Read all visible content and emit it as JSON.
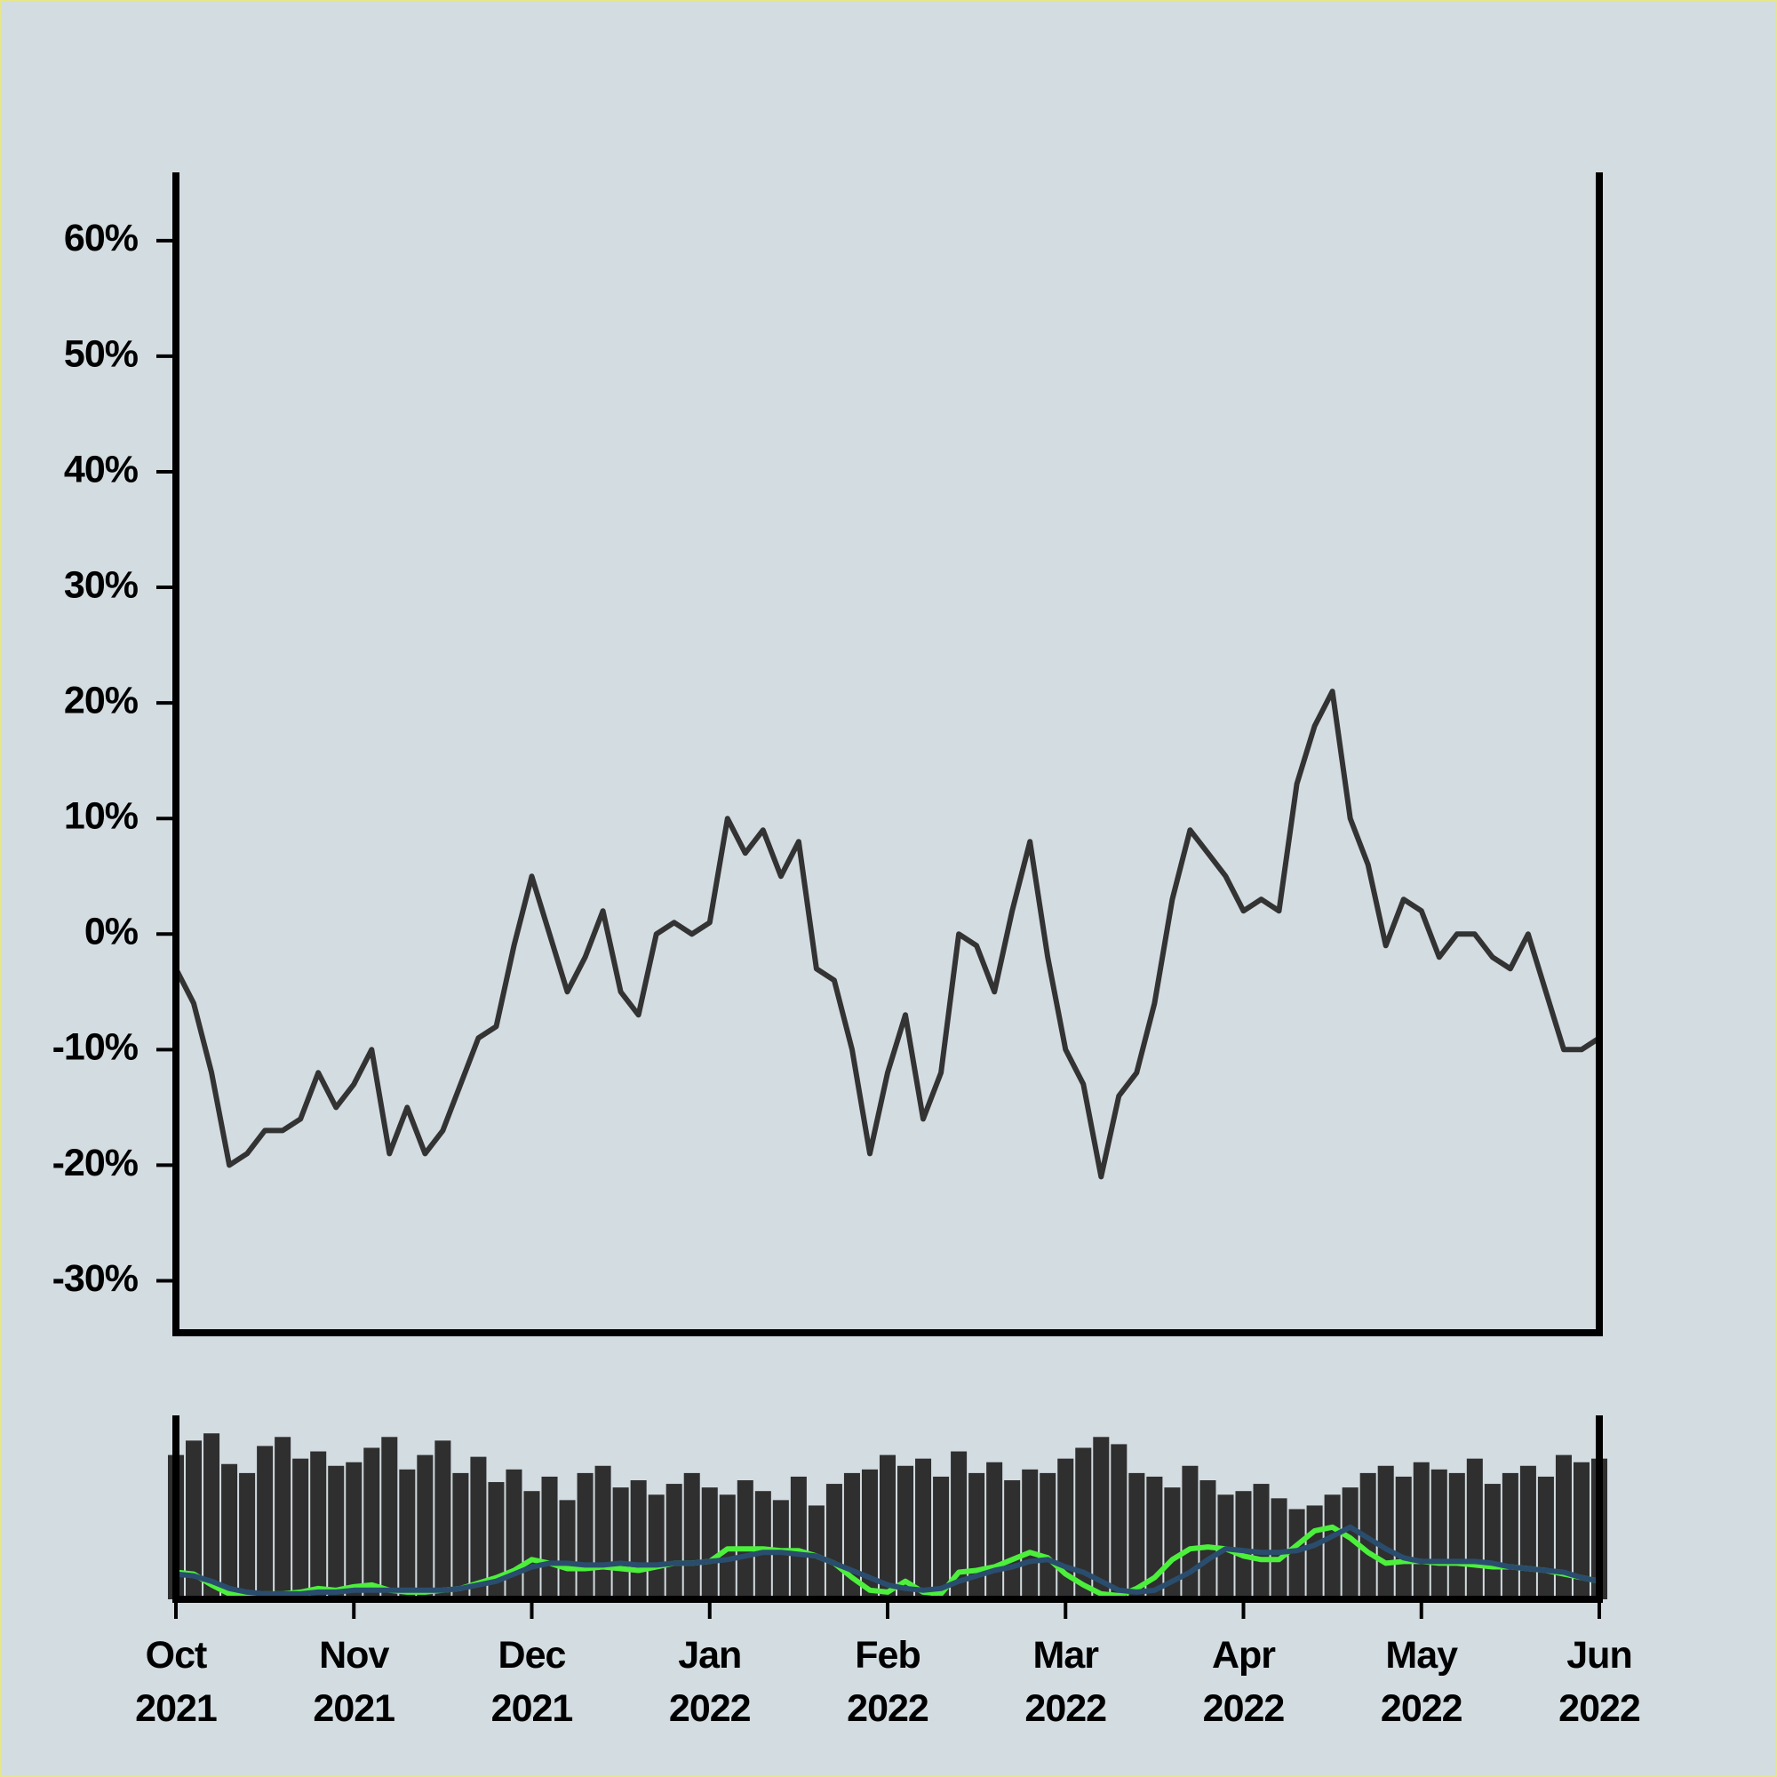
{
  "chart_data": [
    {
      "type": "line",
      "color": "#333333",
      "values": [
        -3,
        -6,
        -12,
        -20,
        -19,
        -17,
        -17,
        -16,
        -12,
        -15,
        -13,
        -10,
        -19,
        -15,
        -19,
        -17,
        -13,
        -9,
        -8,
        -1,
        5,
        0,
        -5,
        -2,
        2,
        -5,
        -7,
        0,
        1,
        0,
        1,
        10,
        7,
        9,
        5,
        8,
        -3,
        -4,
        -10,
        -19,
        -12,
        -7,
        -16,
        -12,
        0,
        -1,
        -5,
        2,
        8,
        -2,
        -10,
        -13,
        -21,
        -14,
        -12,
        -6,
        3,
        9,
        7,
        5,
        2,
        3,
        2,
        13,
        18,
        21,
        10,
        6,
        -1,
        3,
        2,
        -2,
        0,
        0,
        -2,
        -3,
        0,
        -5,
        -10,
        -10,
        -9
      ],
      "ylim": [
        -34.5,
        65.6
      ],
      "yticks": [
        {
          "value": -30,
          "label": "-30%"
        },
        {
          "value": -20,
          "label": "-20%"
        },
        {
          "value": -10,
          "label": "-10%"
        },
        {
          "value": 0,
          "label": "0%"
        },
        {
          "value": 10,
          "label": "10%"
        },
        {
          "value": 20,
          "label": "20%"
        },
        {
          "value": 30,
          "label": "30%"
        },
        {
          "value": 40,
          "label": "40%"
        },
        {
          "value": 50,
          "label": "50%"
        },
        {
          "value": 60,
          "label": "60%"
        }
      ]
    },
    {
      "type": "combo",
      "categories": [
        "Oct 2021",
        null,
        null,
        null,
        null,
        null,
        null,
        null,
        null,
        null,
        "Nov 2021",
        null,
        null,
        null,
        null,
        null,
        null,
        null,
        null,
        null,
        "Dec 2021",
        null,
        null,
        null,
        null,
        null,
        null,
        null,
        null,
        null,
        "Jan 2022",
        null,
        null,
        null,
        null,
        null,
        null,
        null,
        null,
        null,
        "Feb 2022",
        null,
        null,
        null,
        null,
        null,
        null,
        null,
        null,
        null,
        "Mar 2022",
        null,
        null,
        null,
        null,
        null,
        null,
        null,
        null,
        null,
        "Apr 2022",
        null,
        null,
        null,
        null,
        null,
        null,
        null,
        null,
        null,
        "May 2022",
        null,
        null,
        null,
        null,
        null,
        null,
        null,
        null,
        null,
        "Jun 2022"
      ],
      "ylim": [
        0,
        100
      ],
      "series": [
        {
          "type": "bar",
          "color": "#2f2f2f",
          "values": [
            80,
            88,
            92,
            75,
            70,
            85,
            90,
            78,
            82,
            74,
            76,
            84,
            90,
            72,
            80,
            88,
            70,
            79,
            65,
            72,
            60,
            68,
            55,
            70,
            74,
            62,
            66,
            58,
            64,
            70,
            62,
            58,
            66,
            60,
            55,
            68,
            52,
            64,
            70,
            72,
            80,
            74,
            78,
            68,
            82,
            70,
            76,
            66,
            72,
            70,
            78,
            84,
            90,
            86,
            70,
            68,
            62,
            74,
            66,
            58,
            60,
            64,
            56,
            50,
            52,
            58,
            62,
            70,
            74,
            68,
            76,
            72,
            70,
            78,
            64,
            70,
            74,
            68,
            80,
            76,
            78
          ]
        },
        {
          "type": "line",
          "color": "#4cef3c",
          "values": [
            15,
            14,
            8,
            3,
            2,
            3,
            3,
            4,
            6,
            5,
            7,
            8,
            5,
            4,
            4,
            5,
            6,
            9,
            12,
            16,
            22,
            20,
            17,
            17,
            18,
            17,
            16,
            18,
            20,
            20,
            21,
            28,
            28,
            28,
            27,
            27,
            24,
            20,
            12,
            5,
            4,
            10,
            4,
            3,
            15,
            16,
            18,
            22,
            26,
            23,
            14,
            8,
            3,
            2,
            6,
            12,
            22,
            28,
            29,
            28,
            24,
            22,
            22,
            30,
            38,
            40,
            34,
            26,
            20,
            21,
            21,
            20,
            20,
            19,
            18,
            18,
            17,
            16,
            14,
            12,
            10
          ]
        },
        {
          "type": "line",
          "color": "#2a4d6e",
          "values": [
            14,
            13,
            10,
            6,
            4,
            3,
            3,
            3,
            4,
            4,
            5,
            5,
            5,
            5,
            5,
            5,
            6,
            8,
            10,
            14,
            18,
            20,
            20,
            19,
            19,
            20,
            19,
            19,
            20,
            20,
            21,
            22,
            24,
            26,
            26,
            25,
            24,
            20,
            16,
            12,
            8,
            6,
            5,
            6,
            10,
            13,
            16,
            18,
            21,
            22,
            18,
            15,
            10,
            5,
            4,
            5,
            10,
            15,
            22,
            28,
            27,
            26,
            26,
            27,
            30,
            35,
            40,
            34,
            28,
            23,
            21,
            21,
            21,
            21,
            20,
            18,
            17,
            16,
            15,
            12,
            10
          ]
        }
      ]
    }
  ]
}
